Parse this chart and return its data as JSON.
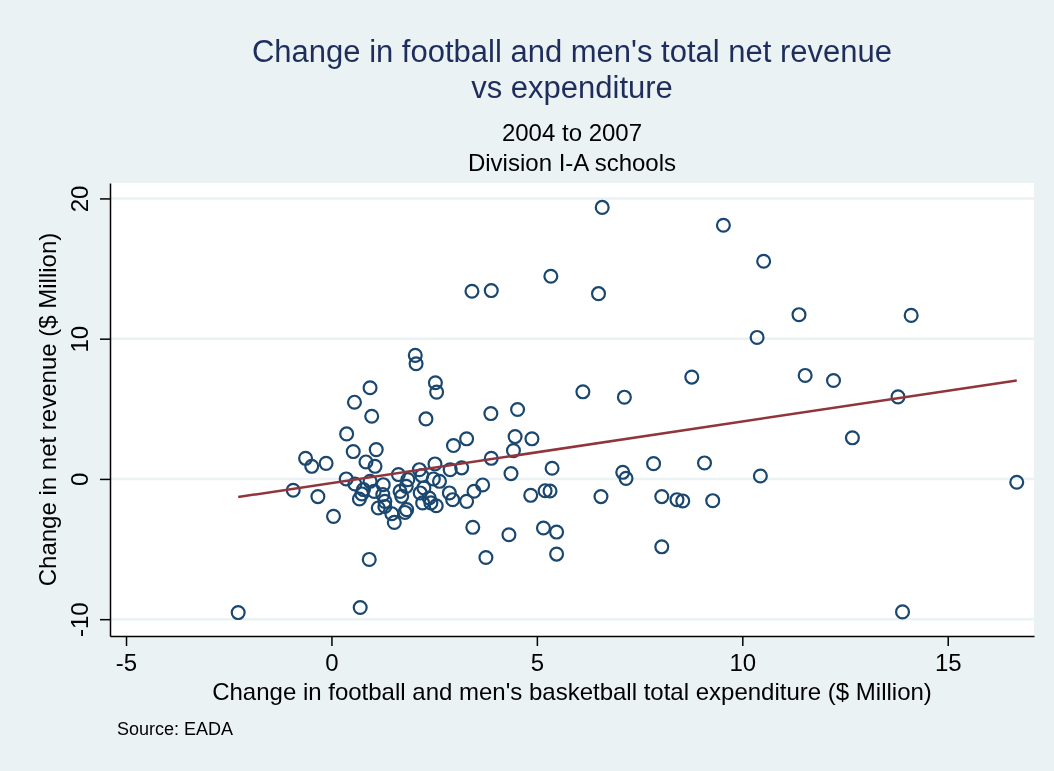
{
  "chart_data": {
    "type": "scatter",
    "title": "Change in football and men's total net revenue\nvs expenditure",
    "subtitle": "2004 to 2007\nDivision I-A schools",
    "xlabel": "Change in football and men's basketball total expenditure ($ Million)",
    "ylabel": "Change in net revenue ($ Million)",
    "annotations": [
      "Source: EADA"
    ],
    "xlim": [
      -5.39,
      17.1
    ],
    "ylim": [
      -11.2,
      21.1
    ],
    "xticks": [
      -5,
      0,
      5,
      10,
      15
    ],
    "yticks": [
      -10,
      0,
      10,
      20
    ],
    "grid": "y",
    "series": [
      {
        "color": "#1a476f",
        "marker": "circle",
        "x": [
          -2.27,
          -0.93,
          -0.63,
          -0.48,
          -0.33,
          -0.13,
          0.05,
          0.37,
          0.36,
          0.53,
          0.56,
          0.7,
          0.68,
          0.74,
          0.92,
          0.94,
          0.98,
          0.84,
          1.06,
          1.09,
          0.57,
          0.78,
          0.94,
          1.04,
          1.14,
          1.26,
          1.25,
          1.3,
          1.3,
          1.47,
          1.53,
          1.63,
          1.67,
          1.71,
          1.79,
          1.83,
          1.86,
          1.82,
          2.04,
          2.06,
          2.14,
          2.16,
          2.2,
          2.25,
          2.22,
          2.3,
          2.38,
          2.42,
          2.55,
          2.52,
          2.48,
          2.53,
          2.56,
          2.63,
          2.87,
          2.89,
          2.97,
          2.95,
          3.17,
          3.29,
          3.29,
          6.59,
          9.54,
          3.42,
          3.89,
          5.34,
          6.5,
          6.12,
          7.13,
          8.77,
          3.88,
          4.53,
          4.47,
          4.88,
          4.43,
          3.89,
          4.37,
          5.37,
          7.09,
          7.17,
          7.84,
          9.08,
          3.47,
          3.68,
          4.85,
          5.2,
          5.32,
          6.56,
          8.04,
          8.41,
          8.55,
          9.28,
          3.44,
          4.32,
          5.16,
          5.48,
          3.76,
          5.48,
          8.04,
          10.52,
          11.38,
          14.11,
          10.36,
          11.53,
          12.22,
          13.79,
          12.68,
          10.44,
          16.68,
          13.9
        ],
        "values": [
          -9.53,
          -0.81,
          1.47,
          0.9,
          -1.26,
          1.11,
          -2.67,
          3.21,
          0,
          1.95,
          5.47,
          -9.17,
          -1.43,
          -1.07,
          -5.74,
          6.5,
          4.47,
          1.21,
          0.9,
          2.09,
          -0.36,
          -0.76,
          -0.17,
          -0.89,
          -2.07,
          -0.41,
          -1.12,
          -1.6,
          -1.96,
          -2.48,
          -3.1,
          0.31,
          -0.89,
          -1.24,
          -2.39,
          -2.19,
          -0.05,
          -0.53,
          8.81,
          8.21,
          0.66,
          -1,
          0.24,
          -0.64,
          -1.71,
          4.28,
          -1.36,
          -1.71,
          -1.91,
          1.07,
          0,
          6.86,
          6.19,
          -0.17,
          -1,
          0.66,
          2.38,
          -1.48,
          0.79,
          2.86,
          -1.6,
          19.36,
          18.09,
          13.38,
          13.43,
          14.45,
          13.21,
          6.21,
          5.83,
          7.26,
          4.66,
          4.95,
          3.02,
          2.86,
          2.02,
          1.47,
          0.38,
          0.76,
          0.47,
          0.04,
          1.09,
          1.14,
          -0.88,
          -0.43,
          -1.17,
          -0.84,
          -0.86,
          -1.26,
          -1.26,
          -1.48,
          -1.57,
          -1.55,
          -3.45,
          -3.98,
          -3.5,
          -3.79,
          -5.6,
          -5.36,
          -4.84,
          15.52,
          11.71,
          11.66,
          10.09,
          7.38,
          7.02,
          5.85,
          2.93,
          0.21,
          -0.24,
          -9.48
        ]
      },
      {
        "type": "line",
        "color": "#90353b",
        "x": [
          -2.27,
          16.68
        ],
        "values": [
          -1.29,
          7.02
        ]
      }
    ]
  }
}
